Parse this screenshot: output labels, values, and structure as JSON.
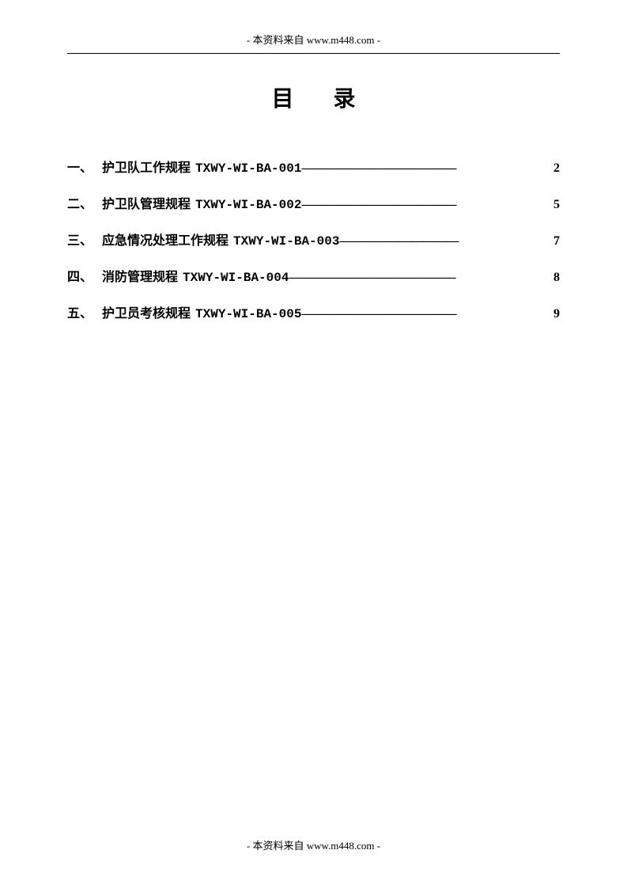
{
  "header": {
    "text": "- 本资料来自 www.m448.com -"
  },
  "title": "目录",
  "toc": {
    "items": [
      {
        "number": "一、",
        "text": "护卫队工作规程",
        "code": "TXWY-WI-BA-001",
        "dashes": "—————————————",
        "page": "2"
      },
      {
        "number": "二、",
        "text": "护卫队管理规程",
        "code": "TXWY-WI-BA-002",
        "dashes": "—————————————",
        "page": "5"
      },
      {
        "number": "三、",
        "text": "应急情况处理工作规程",
        "code": "TXWY-WI-BA-003",
        "dashes": "——————————",
        "page": "7"
      },
      {
        "number": "四、",
        "text": "消防管理规程",
        "code": "TXWY-WI-BA-004",
        "dashes": "——————————————",
        "page": "8"
      },
      {
        "number": "五、",
        "text": "护卫员考核规程",
        "code": "TXWY-WI-BA-005",
        "dashes": "—————————————",
        "page": "9"
      }
    ]
  },
  "footer": {
    "text": "- 本资料来自 www.m448.com -"
  }
}
